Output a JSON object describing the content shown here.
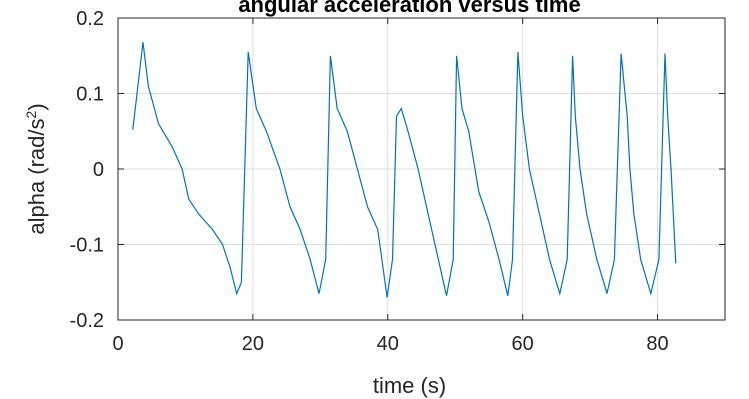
{
  "chart_data": {
    "type": "line",
    "title": "angular acceleration versus time",
    "xlabel": "time (s)",
    "ylabel_prefix": "alpha (rad/s",
    "ylabel_exponent": "2",
    "ylabel_suffix": ")",
    "xlim": [
      0,
      90
    ],
    "ylim": [
      -0.2,
      0.2
    ],
    "x_ticks": [
      0,
      20,
      40,
      60,
      80
    ],
    "x_tick_labels": [
      "0",
      "20",
      "40",
      "60",
      "80"
    ],
    "y_ticks": [
      -0.2,
      -0.1,
      0,
      0.1,
      0.2
    ],
    "y_tick_labels": [
      "-0.2",
      "-0.1",
      "0",
      "0.1",
      "0.2"
    ],
    "grid": true,
    "line_color": "#0072BD",
    "series": [
      {
        "x": [
          2.2,
          3.7,
          4.5,
          6.0,
          8.0,
          9.5,
          10.5,
          12.0,
          14.0,
          15.5,
          16.6,
          17.6,
          18.3,
          19.3,
          20.5,
          22.0,
          24.0,
          25.5,
          27.0,
          28.5,
          29.8,
          30.8,
          31.5,
          32.5,
          34.0,
          35.5,
          37.0,
          38.5,
          39.9,
          40.7,
          41.3,
          42.0,
          43.0,
          44.5,
          46.0,
          47.5,
          48.7,
          49.7,
          50.2,
          51.0,
          52.0,
          53.5,
          55.0,
          56.5,
          57.8,
          58.5,
          59.3,
          60.0,
          61.0,
          62.5,
          64.0,
          65.5,
          66.6,
          67.4,
          67.8,
          68.5,
          69.5,
          71.0,
          72.5,
          73.6,
          74.6,
          75.5,
          75.9,
          76.5,
          77.5,
          79.0,
          80.2,
          81.1,
          81.5,
          82.0,
          82.7
        ],
        "y": [
          0.052,
          0.168,
          0.11,
          0.06,
          0.03,
          0.0,
          -0.04,
          -0.06,
          -0.08,
          -0.1,
          -0.13,
          -0.165,
          -0.15,
          0.155,
          0.08,
          0.05,
          0.0,
          -0.05,
          -0.08,
          -0.12,
          -0.165,
          -0.12,
          0.15,
          0.08,
          0.05,
          0.0,
          -0.05,
          -0.08,
          -0.17,
          -0.12,
          0.07,
          0.08,
          0.05,
          0.0,
          -0.06,
          -0.12,
          -0.168,
          -0.12,
          0.15,
          0.08,
          0.05,
          -0.03,
          -0.07,
          -0.12,
          -0.168,
          -0.12,
          0.155,
          0.07,
          0.0,
          -0.06,
          -0.12,
          -0.165,
          -0.12,
          0.15,
          0.07,
          0.0,
          -0.06,
          -0.12,
          -0.165,
          -0.12,
          0.153,
          0.07,
          0.0,
          -0.06,
          -0.12,
          -0.165,
          -0.12,
          0.153,
          0.07,
          0.0,
          -0.125
        ]
      }
    ]
  }
}
